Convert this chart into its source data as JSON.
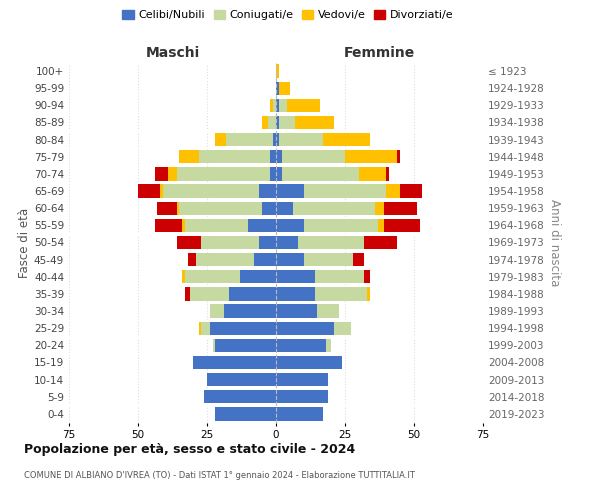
{
  "age_groups": [
    "0-4",
    "5-9",
    "10-14",
    "15-19",
    "20-24",
    "25-29",
    "30-34",
    "35-39",
    "40-44",
    "45-49",
    "50-54",
    "55-59",
    "60-64",
    "65-69",
    "70-74",
    "75-79",
    "80-84",
    "85-89",
    "90-94",
    "95-99",
    "100+"
  ],
  "birth_years": [
    "2019-2023",
    "2014-2018",
    "2009-2013",
    "2004-2008",
    "1999-2003",
    "1994-1998",
    "1989-1993",
    "1984-1988",
    "1979-1983",
    "1974-1978",
    "1969-1973",
    "1964-1968",
    "1959-1963",
    "1954-1958",
    "1949-1953",
    "1944-1948",
    "1939-1943",
    "1934-1938",
    "1929-1933",
    "1924-1928",
    "≤ 1923"
  ],
  "colors": {
    "celibi": "#4472c4",
    "coniugati": "#c5d9a0",
    "vedovi": "#ffc000",
    "divorziati": "#cc0000"
  },
  "males": {
    "celibi": [
      22,
      26,
      25,
      30,
      22,
      24,
      19,
      17,
      13,
      8,
      6,
      10,
      5,
      6,
      2,
      2,
      1,
      0,
      0,
      0,
      0
    ],
    "coniugati": [
      0,
      0,
      0,
      0,
      1,
      3,
      5,
      14,
      20,
      21,
      21,
      23,
      30,
      35,
      34,
      26,
      17,
      3,
      1,
      0,
      0
    ],
    "vedovi": [
      0,
      0,
      0,
      0,
      0,
      1,
      0,
      0,
      1,
      0,
      0,
      1,
      1,
      1,
      3,
      7,
      4,
      2,
      1,
      0,
      0
    ],
    "divorziati": [
      0,
      0,
      0,
      0,
      0,
      0,
      0,
      2,
      0,
      3,
      9,
      10,
      7,
      8,
      5,
      0,
      0,
      0,
      0,
      0,
      0
    ]
  },
  "females": {
    "celibi": [
      17,
      19,
      19,
      24,
      18,
      21,
      15,
      14,
      14,
      10,
      8,
      10,
      6,
      10,
      2,
      2,
      1,
      1,
      1,
      1,
      0
    ],
    "coniugati": [
      0,
      0,
      0,
      0,
      2,
      6,
      8,
      19,
      18,
      18,
      24,
      27,
      30,
      30,
      28,
      23,
      16,
      6,
      3,
      0,
      0
    ],
    "vedovi": [
      0,
      0,
      0,
      0,
      0,
      0,
      0,
      1,
      0,
      0,
      0,
      2,
      3,
      5,
      10,
      19,
      17,
      14,
      12,
      4,
      1
    ],
    "divorziati": [
      0,
      0,
      0,
      0,
      0,
      0,
      0,
      0,
      2,
      4,
      12,
      13,
      12,
      8,
      1,
      1,
      0,
      0,
      0,
      0,
      0
    ]
  },
  "title": "Popolazione per età, sesso e stato civile - 2024",
  "subtitle": "COMUNE DI ALBIANO D'IVREA (TO) - Dati ISTAT 1° gennaio 2024 - Elaborazione TUTTITALIA.IT",
  "xlabel_left": "Maschi",
  "xlabel_right": "Femmine",
  "ylabel_left": "Fasce di età",
  "ylabel_right": "Anni di nascita",
  "legend_labels": [
    "Celibi/Nubili",
    "Coniugati/e",
    "Vedovi/e",
    "Divorziati/e"
  ],
  "xlim": 75,
  "bg_color": "#ffffff",
  "grid_color": "#cccccc",
  "bar_height": 0.78
}
